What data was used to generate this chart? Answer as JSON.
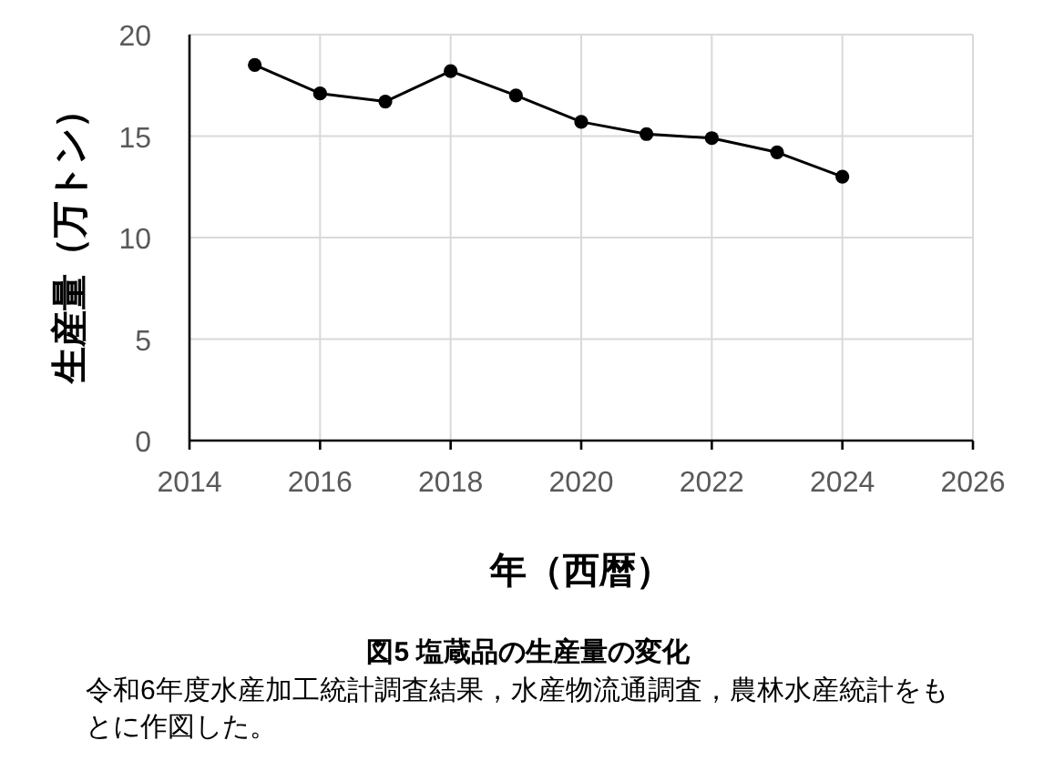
{
  "chart_data": {
    "type": "line",
    "title": "図5  塩蔵品の生産量の変化",
    "xlabel": "年（西暦）",
    "ylabel": "生産量（万トン）",
    "x": [
      2015,
      2016,
      2017,
      2018,
      2019,
      2020,
      2021,
      2022,
      2023,
      2024
    ],
    "series": [
      {
        "color": "#000000",
        "values": [
          18.5,
          17.1,
          16.7,
          18.2,
          17.0,
          15.7,
          15.1,
          14.9,
          14.2,
          13.0
        ]
      }
    ],
    "xlim": [
      2014,
      2026
    ],
    "xticks": [
      2014,
      2016,
      2018,
      2020,
      2022,
      2024,
      2026
    ],
    "ylim": [
      0,
      20
    ],
    "yticks": [
      0,
      5,
      10,
      15,
      20
    ],
    "grid": true,
    "marker": "circle",
    "line_style": "solid",
    "annotations": [
      "令和6年度水産加工統計調査結果，水産物流通調査，農林水産統計をもとに作図した。"
    ]
  }
}
